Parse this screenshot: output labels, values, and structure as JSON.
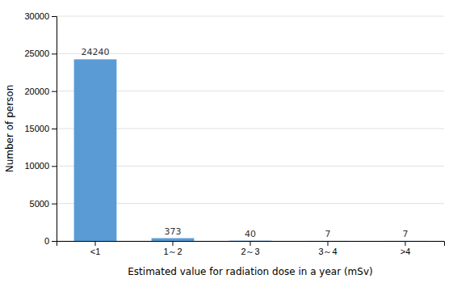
{
  "chart_data": {
    "type": "bar",
    "xlabel": "Estimated value for radiation dose in a year (mSv)",
    "ylabel": "Number of person",
    "categories": [
      "<1",
      "1～2",
      "2～3",
      "3～4",
      ">4"
    ],
    "values": [
      24240,
      373,
      40,
      7,
      7
    ],
    "color": "#5b9bd5",
    "ylim": [
      0,
      30000
    ],
    "yticks": [
      0,
      5000,
      10000,
      15000,
      20000,
      25000,
      30000
    ],
    "grid": true,
    "data_labels": true
  }
}
